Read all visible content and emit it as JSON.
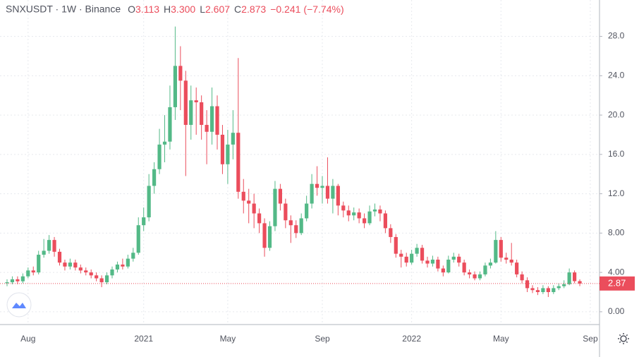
{
  "chart_data": {
    "type": "candlestick",
    "title": "SNXUSDT · 1W · Binance",
    "legend_values": [
      {
        "label": "O",
        "value": "3.113"
      },
      {
        "label": "H",
        "value": "3.300"
      },
      {
        "label": "L",
        "value": "2.607"
      },
      {
        "label": "C",
        "value": "2.873"
      }
    ],
    "change": "−0.241",
    "change_percent": "(−7.74%)",
    "last_price_label": "2.87",
    "up_color": "#53b987",
    "down_color": "#eb4d5c",
    "grid": true,
    "ylim": [
      -1.3,
      31.7
    ],
    "yticks": [
      {
        "value": 0,
        "label": "0.00"
      },
      {
        "value": 4,
        "label": "4.00"
      },
      {
        "value": 8,
        "label": "8.00"
      },
      {
        "value": 12,
        "label": "12.0"
      },
      {
        "value": 16,
        "label": "16.0"
      },
      {
        "value": 20,
        "label": "20.0"
      },
      {
        "value": 24,
        "label": "24.0"
      },
      {
        "value": 28,
        "label": "28.0"
      }
    ],
    "categories": [
      null,
      null,
      null,
      null,
      "Aug",
      null,
      null,
      null,
      null,
      null,
      null,
      null,
      null,
      null,
      null,
      null,
      null,
      null,
      null,
      null,
      null,
      null,
      null,
      null,
      null,
      null,
      "2021",
      null,
      null,
      null,
      null,
      null,
      null,
      null,
      null,
      null,
      null,
      null,
      null,
      null,
      null,
      null,
      "May",
      null,
      null,
      null,
      null,
      null,
      null,
      null,
      null,
      null,
      null,
      null,
      null,
      null,
      null,
      null,
      null,
      null,
      "Sep",
      null,
      null,
      null,
      null,
      null,
      null,
      null,
      null,
      null,
      null,
      null,
      null,
      null,
      null,
      null,
      null,
      "2022",
      null,
      null,
      null,
      null,
      null,
      null,
      null,
      null,
      null,
      null,
      null,
      null,
      null,
      null,
      null,
      null,
      "May",
      null,
      null,
      null,
      null,
      null,
      null,
      null,
      null,
      null,
      null,
      null,
      null,
      null,
      null,
      null,
      null,
      "Sep"
    ],
    "open": [
      2.9,
      3.0,
      3.3,
      3.1,
      3.6,
      4.2,
      4.0,
      5.8,
      6.2,
      7.3,
      6.1,
      5.0,
      4.6,
      5.0,
      4.5,
      4.2,
      4.0,
      3.7,
      3.4,
      3.0,
      3.7,
      4.3,
      4.8,
      4.6,
      5.4,
      6.0,
      8.8,
      9.6,
      12.8,
      14.5,
      17.0,
      17.3,
      20.8,
      25.0,
      23.5,
      19.0,
      21.5,
      21.3,
      19.0,
      18.3,
      20.9,
      18.0,
      15.0,
      17.0,
      18.2,
      12.2,
      11.3,
      11.0,
      10.0,
      9.0,
      6.5,
      8.7,
      12.5,
      11.0,
      9.3,
      8.8,
      8.0,
      9.5,
      11.0,
      13.0,
      12.6,
      12.8,
      11.5,
      12.8,
      10.8,
      10.3,
      9.8,
      10.1,
      9.5,
      9.0,
      10.2,
      10.4,
      10.0,
      8.5,
      7.6,
      5.9,
      5.6,
      5.0,
      5.9,
      6.5,
      5.2,
      4.9,
      5.3,
      4.4,
      4.0,
      5.3,
      5.6,
      5.0,
      4.0,
      3.8,
      3.4,
      3.8,
      4.7,
      5.0,
      7.3,
      5.5,
      5.3,
      5.0,
      3.8,
      3.2,
      2.4,
      2.2,
      2.0,
      2.4,
      2.0,
      2.4,
      2.6,
      2.8,
      4.0,
      3.113,
      null,
      null
    ],
    "high": [
      3.3,
      3.6,
      3.6,
      3.9,
      4.5,
      4.6,
      6.2,
      7.4,
      7.8,
      7.6,
      6.4,
      5.3,
      5.4,
      5.3,
      4.8,
      4.5,
      4.3,
      4.0,
      3.7,
      4.0,
      4.6,
      5.1,
      5.4,
      5.8,
      6.5,
      9.6,
      10.6,
      14.0,
      15.2,
      18.6,
      20.0,
      23.0,
      29.0,
      27.0,
      24.5,
      23.0,
      22.8,
      22.0,
      20.5,
      22.8,
      22.0,
      19.0,
      18.5,
      20.5,
      25.8,
      13.5,
      12.5,
      12.0,
      10.5,
      9.5,
      9.2,
      13.3,
      13.0,
      11.5,
      9.8,
      9.3,
      10.0,
      11.8,
      14.0,
      14.8,
      13.8,
      15.7,
      13.5,
      13.0,
      11.2,
      10.8,
      10.6,
      10.5,
      10.0,
      10.8,
      11.0,
      10.8,
      10.3,
      8.9,
      7.9,
      6.3,
      6.0,
      6.3,
      6.9,
      6.8,
      5.6,
      5.7,
      5.6,
      4.7,
      5.7,
      6.0,
      5.9,
      5.3,
      4.3,
      4.1,
      4.1,
      5.0,
      5.4,
      8.2,
      7.6,
      6.0,
      7.0,
      5.3,
      4.1,
      3.5,
      2.7,
      2.5,
      2.7,
      2.6,
      2.7,
      2.9,
      3.2,
      4.4,
      4.2,
      3.3,
      null,
      null
    ],
    "low": [
      2.6,
      2.8,
      2.8,
      2.9,
      3.4,
      3.7,
      3.8,
      5.5,
      5.9,
      5.6,
      4.7,
      4.2,
      4.3,
      4.2,
      3.9,
      3.7,
      3.4,
      3.1,
      2.5,
      2.8,
      3.4,
      4.0,
      4.3,
      4.4,
      5.1,
      5.8,
      8.2,
      9.2,
      12.0,
      14.0,
      15.2,
      16.5,
      19.5,
      20.5,
      13.8,
      17.5,
      18.0,
      17.5,
      15.0,
      17.0,
      16.5,
      14.0,
      13.0,
      15.5,
      11.5,
      10.0,
      9.0,
      8.5,
      8.0,
      5.6,
      6.2,
      8.2,
      10.3,
      8.5,
      7.0,
      7.5,
      7.8,
      9.2,
      10.5,
      11.8,
      11.0,
      11.0,
      10.0,
      9.8,
      9.6,
      9.2,
      9.3,
      9.0,
      8.5,
      8.8,
      9.7,
      9.2,
      8.0,
      7.0,
      5.5,
      4.5,
      4.6,
      4.8,
      5.6,
      4.9,
      4.5,
      4.6,
      4.1,
      3.6,
      3.9,
      5.0,
      4.6,
      3.7,
      3.4,
      3.2,
      3.2,
      3.6,
      4.4,
      4.9,
      5.1,
      4.9,
      4.7,
      3.5,
      2.9,
      2.0,
      1.9,
      1.7,
      1.8,
      1.5,
      1.8,
      2.2,
      2.4,
      2.7,
      2.9,
      2.607,
      null,
      null
    ],
    "close": [
      3.0,
      3.3,
      3.1,
      3.6,
      4.2,
      4.0,
      5.8,
      6.2,
      7.3,
      6.1,
      5.0,
      4.6,
      5.0,
      4.5,
      4.2,
      4.0,
      3.7,
      3.4,
      3.0,
      3.7,
      4.3,
      4.8,
      4.6,
      5.4,
      6.0,
      8.8,
      9.6,
      12.8,
      14.5,
      17.0,
      17.3,
      20.8,
      25.0,
      23.5,
      19.0,
      21.5,
      21.3,
      19.0,
      18.3,
      20.9,
      18.0,
      15.0,
      17.0,
      18.2,
      12.2,
      11.3,
      11.0,
      10.0,
      9.0,
      6.5,
      8.7,
      12.5,
      11.0,
      9.3,
      8.8,
      8.0,
      9.5,
      11.0,
      13.0,
      12.6,
      12.8,
      11.5,
      12.8,
      10.8,
      10.3,
      9.8,
      10.1,
      9.5,
      9.0,
      10.2,
      10.4,
      10.0,
      8.5,
      7.6,
      5.9,
      5.6,
      5.0,
      5.9,
      6.5,
      5.2,
      4.9,
      5.3,
      4.4,
      4.0,
      5.3,
      5.6,
      5.0,
      4.0,
      3.8,
      3.4,
      3.8,
      4.7,
      5.0,
      7.3,
      5.5,
      5.3,
      5.0,
      3.8,
      3.2,
      2.4,
      2.2,
      2.0,
      2.4,
      2.0,
      2.4,
      2.6,
      2.8,
      4.0,
      3.113,
      2.873,
      null,
      null
    ]
  }
}
